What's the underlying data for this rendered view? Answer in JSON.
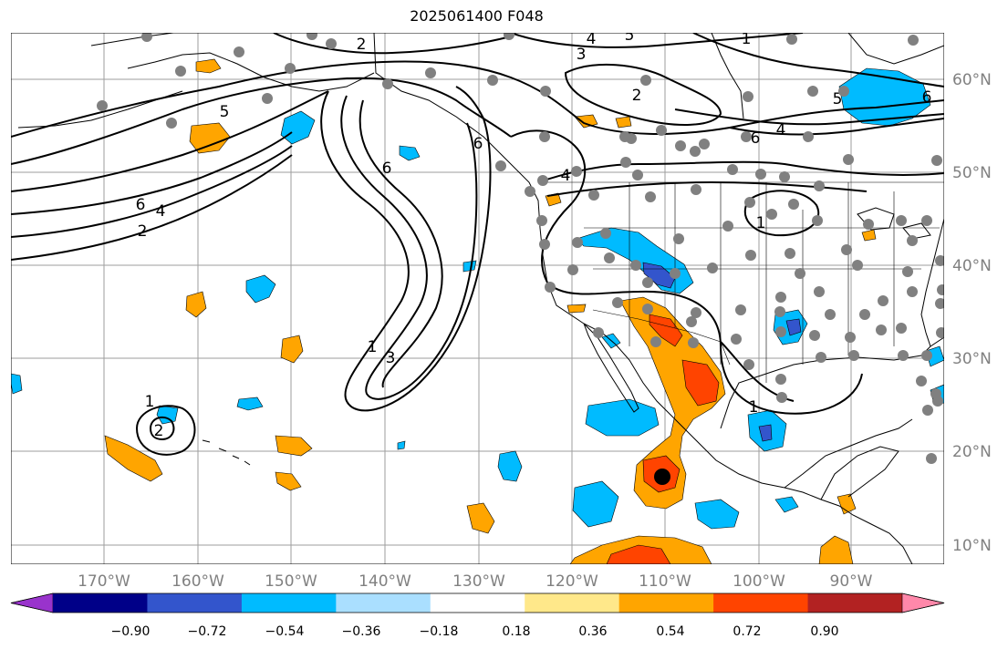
{
  "title": "2025061400 F048",
  "map": {
    "lon_labels": [
      "170°W",
      "160°W",
      "150°W",
      "140°W",
      "130°W",
      "120°W",
      "110°W",
      "100°W",
      "90°W"
    ],
    "lat_labels": [
      "60°N",
      "50°N",
      "40°N",
      "30°N",
      "20°N",
      "10°N"
    ],
    "gridline_color": "#9e9e9e",
    "tick_label_color": "#808080",
    "coastline_color": "#000000",
    "contour_color": "#000000",
    "contour_labels": [
      "2",
      "3",
      "4",
      "5",
      "2",
      "6",
      "5",
      "4",
      "6",
      "2",
      "6",
      "4",
      "6",
      "1",
      "3",
      "1",
      "1",
      "2",
      "1",
      "4",
      "6",
      "5",
      "1"
    ],
    "station_marker_color": "#808080",
    "center_marker_color": "#000000"
  },
  "colorbar": {
    "colors": [
      "#9933cc",
      "#000088",
      "#3355cc",
      "#00bbff",
      "#aadfff",
      "#ffffff",
      "#ffe88a",
      "#ffa500",
      "#ff4400",
      "#b22222",
      "#ff88aa"
    ],
    "tick_labels": [
      "−0.90",
      "−0.72",
      "−0.54",
      "−0.36",
      "−0.18",
      "0.18",
      "0.36",
      "0.54",
      "0.72",
      "0.90"
    ]
  }
}
